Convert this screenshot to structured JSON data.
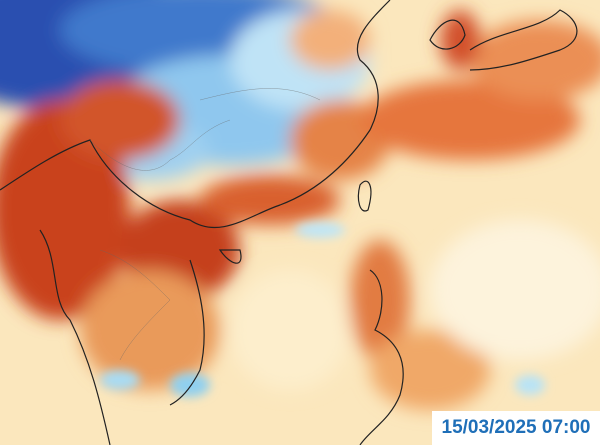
{
  "timestamp": "15/03/2025 07:00"
}
